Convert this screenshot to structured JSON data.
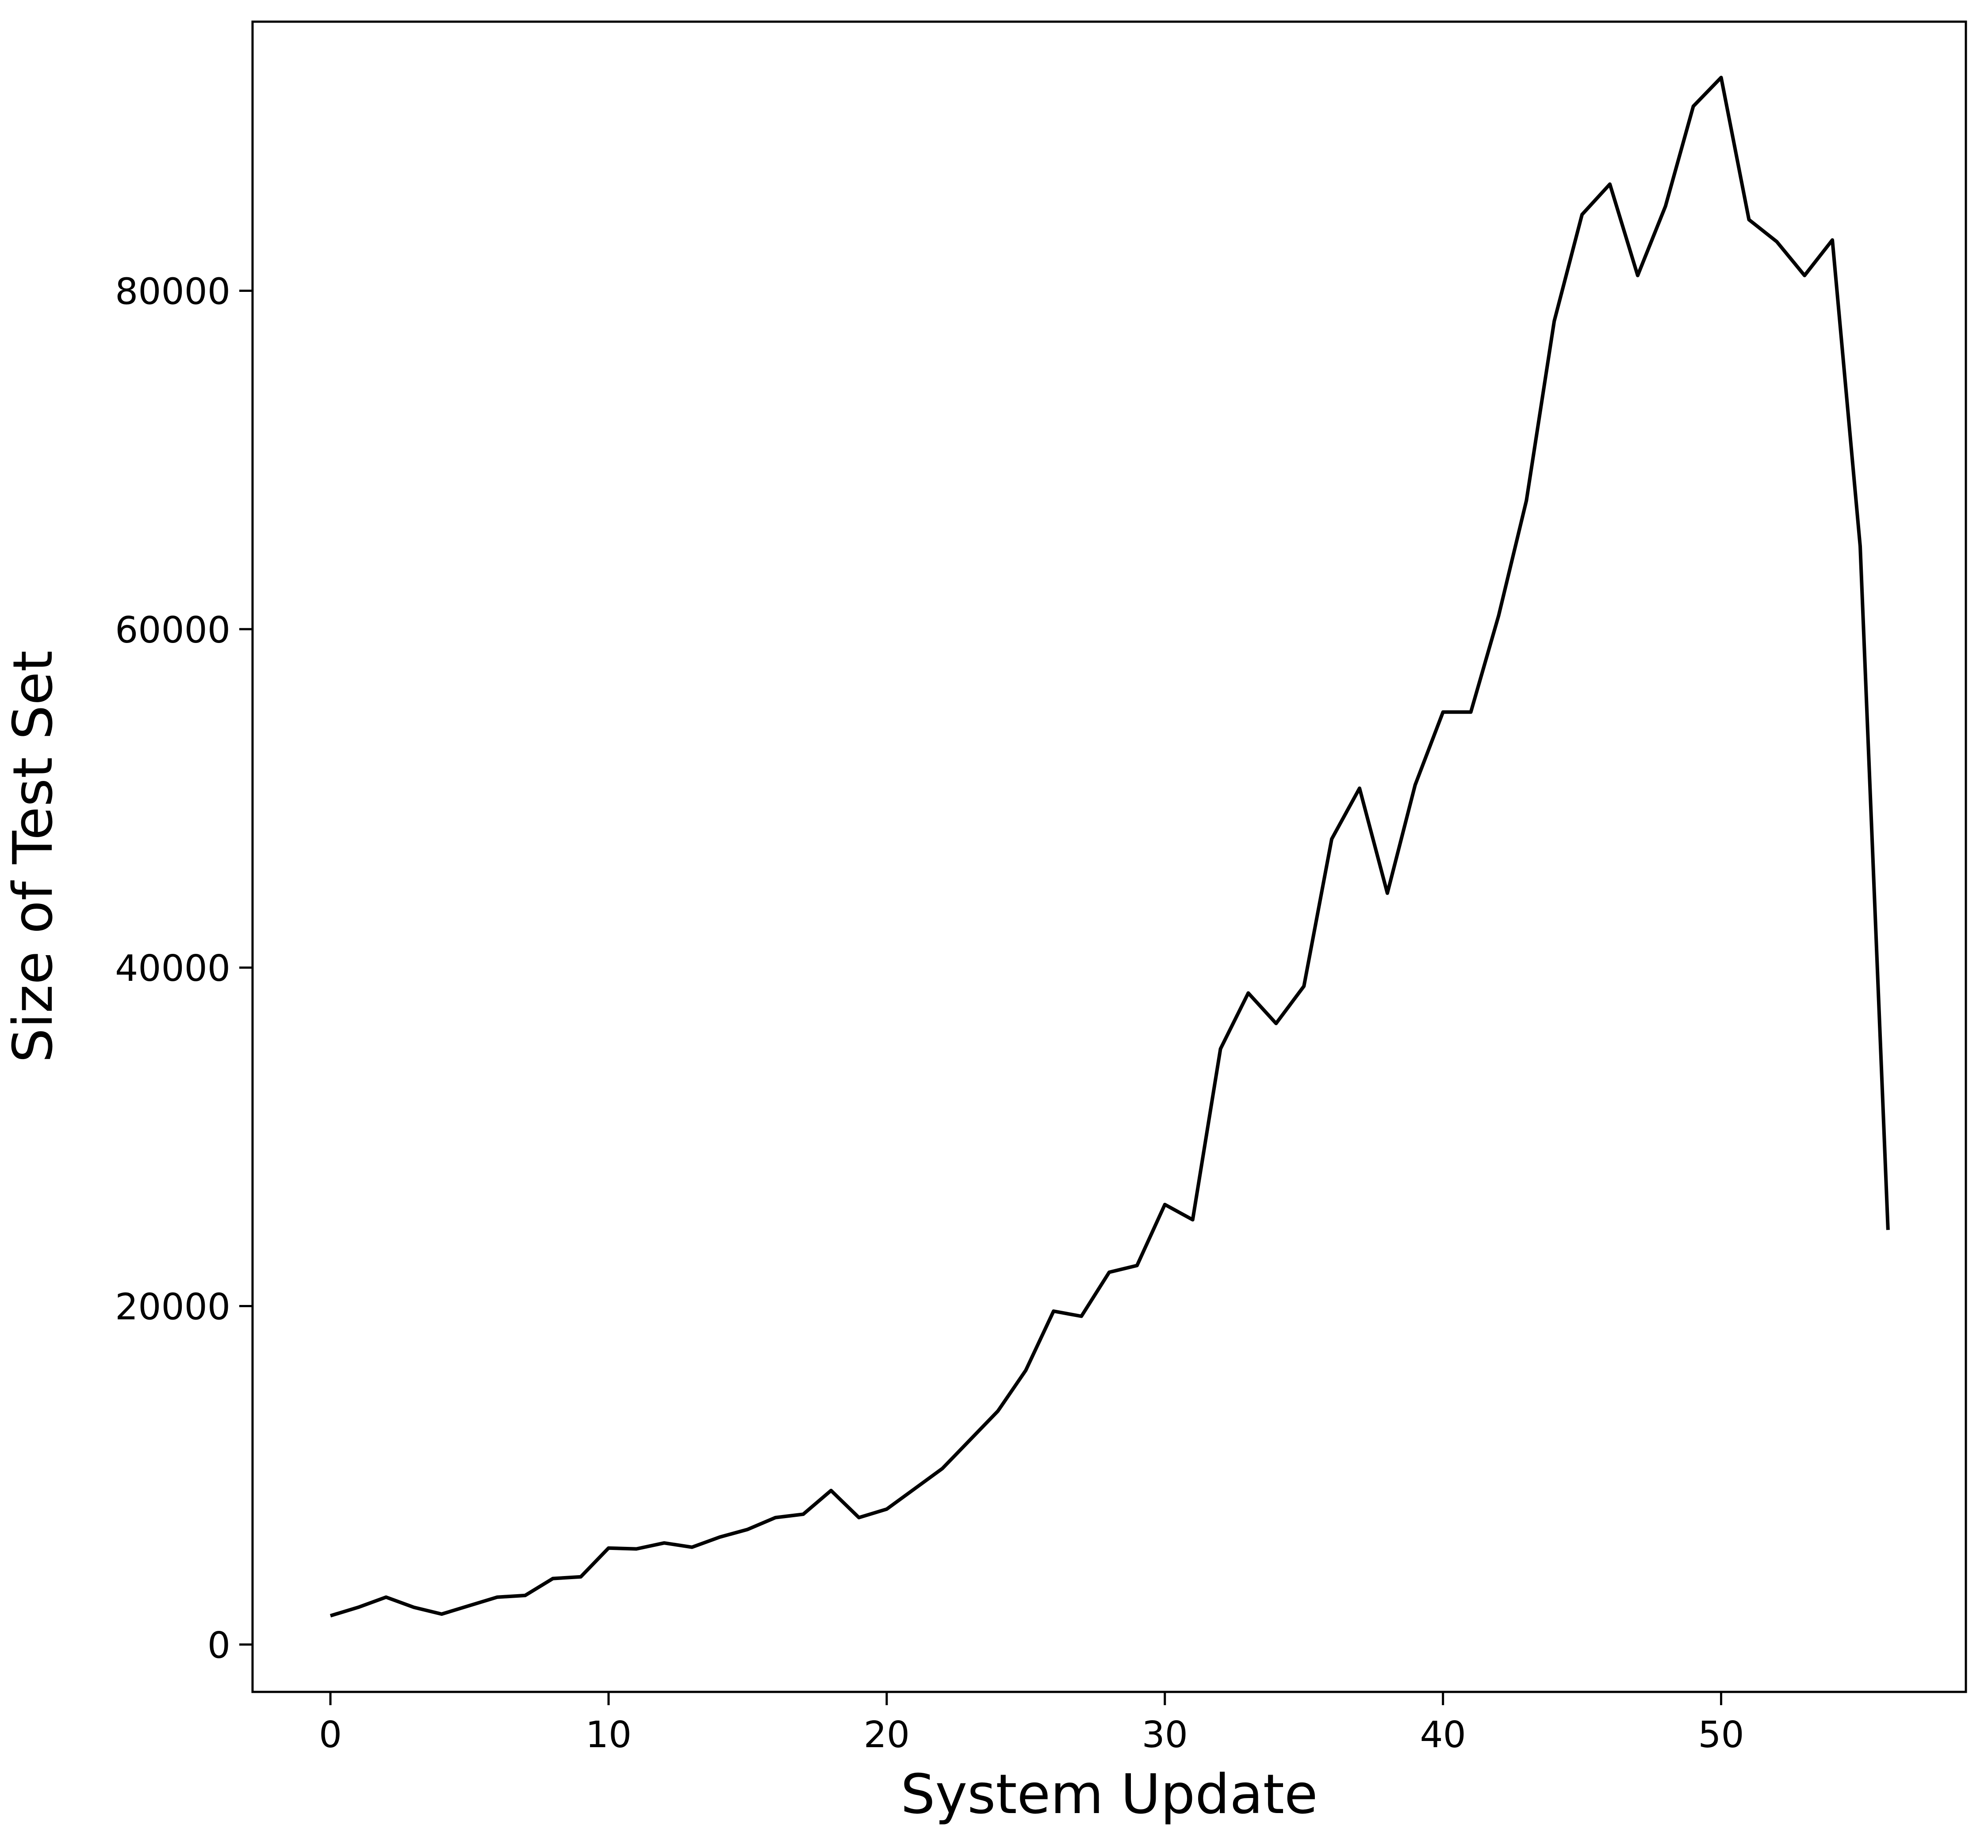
{
  "chart_data": {
    "type": "line",
    "title": "",
    "xlabel": "System Update",
    "ylabel": "Size of Test Set",
    "xlim": [
      -2.8,
      58.8
    ],
    "ylim": [
      -2800,
      95900
    ],
    "xticks": [
      0,
      10,
      20,
      30,
      40,
      50
    ],
    "yticks": [
      0,
      20000,
      40000,
      60000,
      80000
    ],
    "grid": false,
    "legend": "none",
    "line_color": "#000000",
    "series": [
      {
        "x": [
          0,
          1,
          2,
          3,
          4,
          5,
          6,
          7,
          8,
          9,
          10,
          11,
          12,
          13,
          14,
          15,
          16,
          17,
          18,
          19,
          20,
          21,
          22,
          23,
          24,
          25,
          26,
          27,
          28,
          29,
          30,
          31,
          32,
          33,
          34,
          35,
          36,
          37,
          38,
          39,
          40,
          41,
          42,
          43,
          44,
          45,
          46,
          47,
          48,
          49,
          50,
          51,
          52,
          53,
          54,
          55,
          56
        ],
        "values": [
          1700,
          2200,
          2800,
          2200,
          1800,
          2300,
          2800,
          2900,
          3900,
          4000,
          5700,
          5650,
          6000,
          5750,
          6350,
          6800,
          7500,
          7700,
          9100,
          7500,
          8000,
          9200,
          10400,
          12100,
          13800,
          16200,
          19700,
          19400,
          22000,
          22400,
          26000,
          25100,
          35200,
          38500,
          36700,
          38900,
          47600,
          50600,
          44400,
          50800,
          55100,
          55100,
          60800,
          67600,
          78200,
          84500,
          86300,
          80900,
          85000,
          90900,
          92600,
          84200,
          82900,
          80900,
          83000,
          64900,
          24500
        ]
      }
    ]
  }
}
